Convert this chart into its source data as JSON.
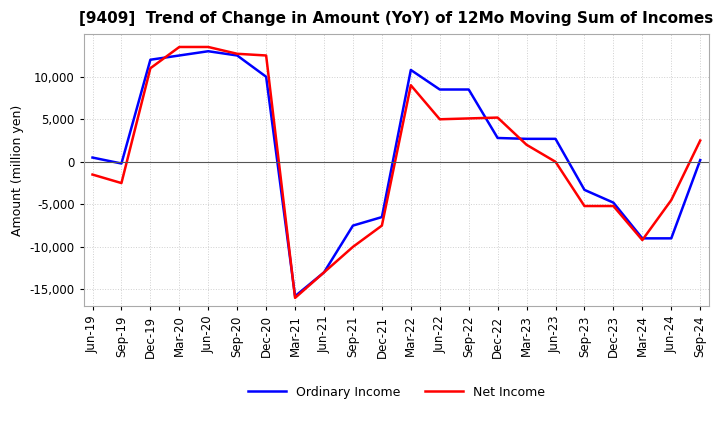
{
  "title": "[9409]  Trend of Change in Amount (YoY) of 12Mo Moving Sum of Incomes",
  "ylabel": "Amount (million yen)",
  "legend_labels": [
    "Ordinary Income",
    "Net Income"
  ],
  "line_colors": [
    "#0000ff",
    "#ff0000"
  ],
  "x_labels": [
    "Jun-19",
    "Sep-19",
    "Dec-19",
    "Mar-20",
    "Jun-20",
    "Sep-20",
    "Dec-20",
    "Mar-21",
    "Jun-21",
    "Sep-21",
    "Dec-21",
    "Mar-22",
    "Jun-22",
    "Sep-22",
    "Dec-22",
    "Mar-23",
    "Jun-23",
    "Sep-23",
    "Dec-23",
    "Mar-24",
    "Jun-24",
    "Sep-24"
  ],
  "ordinary_income": [
    500,
    -200,
    12000,
    12500,
    13000,
    12500,
    10000,
    -15800,
    -13000,
    -7500,
    -6500,
    10800,
    8500,
    8500,
    2800,
    2700,
    2700,
    -3300,
    -4800,
    -9000,
    -9000,
    200
  ],
  "net_income": [
    -1500,
    -2500,
    11000,
    13500,
    13500,
    12700,
    12500,
    -16000,
    -13000,
    -10000,
    -7500,
    9000,
    5000,
    5100,
    5200,
    2000,
    0,
    -5200,
    -5200,
    -9200,
    -4500,
    2500
  ],
  "ylim": [
    -17000,
    15000
  ],
  "yticks": [
    -15000,
    -10000,
    -5000,
    0,
    5000,
    10000
  ],
  "background_color": "#ffffff",
  "grid_color": "#d0d0d0",
  "title_fontsize": 11,
  "axis_fontsize": 9,
  "tick_fontsize": 8.5
}
